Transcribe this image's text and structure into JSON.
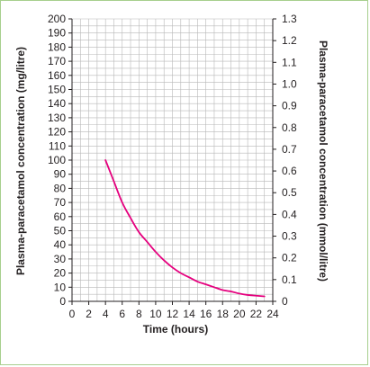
{
  "chart_data": {
    "type": "line",
    "xlabel": "Time (hours)",
    "ylabel": "Plasma-paracetamol concentration (mg/litre)",
    "y2label": "Plasma-paracetamol concentration (mmol/litre)",
    "xlim": [
      0,
      24
    ],
    "ylim": [
      0,
      200
    ],
    "y2lim": [
      0,
      1.3
    ],
    "grid": true,
    "x_ticks": [
      "0",
      "2",
      "4",
      "6",
      "8",
      "10",
      "12",
      "14",
      "16",
      "18",
      "20",
      "22",
      "24"
    ],
    "y_ticks": [
      "0",
      "10",
      "20",
      "30",
      "40",
      "50",
      "60",
      "70",
      "80",
      "90",
      "100",
      "110",
      "120",
      "130",
      "140",
      "150",
      "160",
      "170",
      "180",
      "190",
      "200"
    ],
    "y2_ticks": [
      "0",
      "0.1",
      "0.2",
      "0.3",
      "0.4",
      "0.5",
      "0.6",
      "0.7",
      "0.8",
      "0.9",
      "1.0",
      "1.1",
      "1.2",
      "1.3"
    ],
    "series": [
      {
        "color": "#e5007e",
        "x": [
          4,
          5,
          6,
          7,
          8,
          9,
          10,
          11,
          12,
          13,
          14,
          15,
          16,
          17,
          18,
          19,
          20,
          21,
          22,
          23
        ],
        "y": [
          100,
          85,
          70,
          59,
          49,
          42,
          35,
          29,
          24,
          20,
          17,
          14,
          12,
          10,
          8,
          7,
          5.5,
          4.5,
          4,
          3.5
        ]
      }
    ]
  }
}
